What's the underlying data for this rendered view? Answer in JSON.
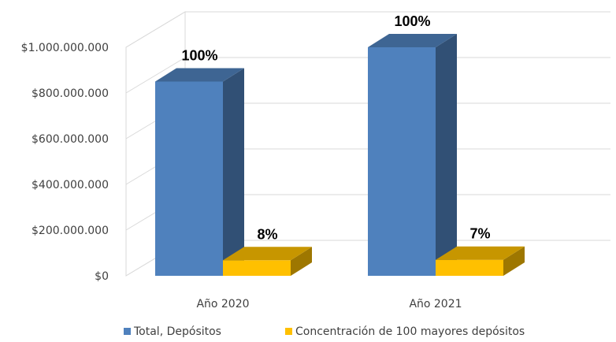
{
  "chart_data": {
    "type": "bar",
    "style": "3d-clustered-column",
    "categories": [
      "Año 2020",
      "Año 2021"
    ],
    "series": [
      {
        "name": "Total, Depósitos",
        "values": [
          850000000,
          1000000000
        ],
        "data_labels": [
          "100%",
          "100%"
        ],
        "color": "#4f81bd"
      },
      {
        "name": "Concentración de 100 mayores depósitos",
        "values": [
          68000000,
          70000000
        ],
        "data_labels": [
          "8%",
          "7%"
        ],
        "color": "#ffc000"
      }
    ],
    "y_ticks": [
      "$0",
      "$200.000.000",
      "$400.000.000",
      "$600.000.000",
      "$800.000.000",
      "$1.000.000.000"
    ],
    "ylim": [
      0,
      1000000000
    ],
    "grid": true,
    "legend_position": "bottom"
  }
}
